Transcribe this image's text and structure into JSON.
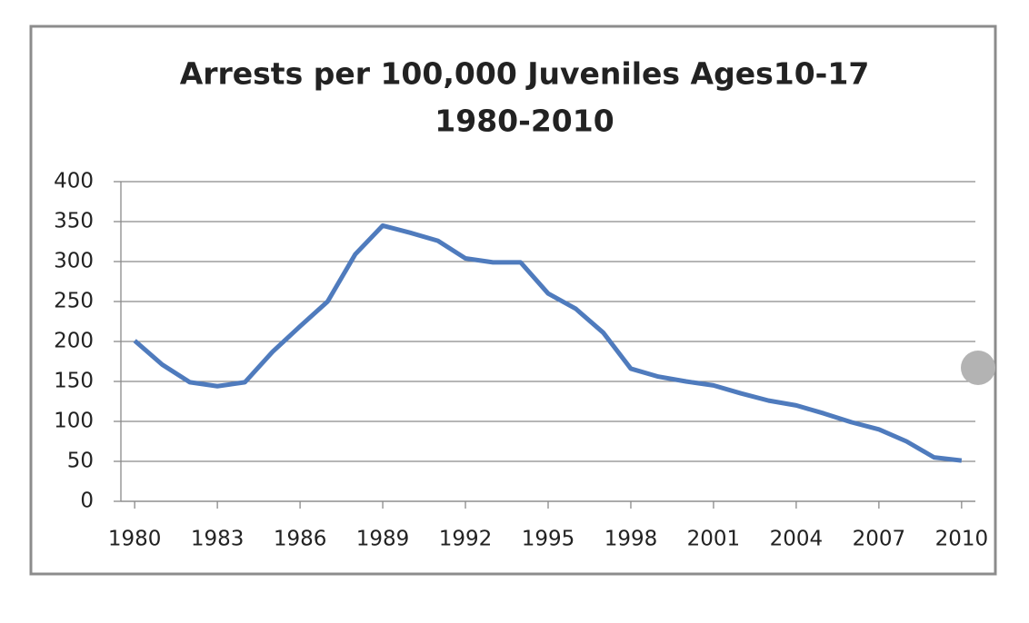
{
  "chart_data": {
    "type": "line",
    "title": "Arrests per 100,000 Juveniles Ages10-17",
    "subtitle": "1980-2010",
    "x": [
      1980,
      1981,
      1982,
      1983,
      1984,
      1985,
      1986,
      1987,
      1988,
      1989,
      1990,
      1991,
      1992,
      1993,
      1994,
      1995,
      1996,
      1997,
      1998,
      1999,
      2000,
      2001,
      2002,
      2003,
      2004,
      2005,
      2006,
      2007,
      2008,
      2009,
      2010
    ],
    "series": [
      {
        "color": "#4f7bbd",
        "values": [
          201,
          171,
          149,
          144,
          149,
          187,
          219,
          250,
          309,
          345,
          336,
          326,
          304,
          299,
          299,
          260,
          241,
          211,
          166,
          156,
          150,
          145,
          135,
          126,
          120,
          110,
          99,
          90,
          75,
          55,
          51
        ]
      }
    ],
    "xlim": [
      1979.5,
      2010.5
    ],
    "xticks": [
      1980,
      1983,
      1986,
      1989,
      1992,
      1995,
      1998,
      2001,
      2004,
      2007,
      2010
    ],
    "ylim": [
      0,
      400
    ],
    "yticks": [
      0,
      50,
      100,
      150,
      200,
      250,
      300,
      350,
      400
    ],
    "grid": true
  }
}
